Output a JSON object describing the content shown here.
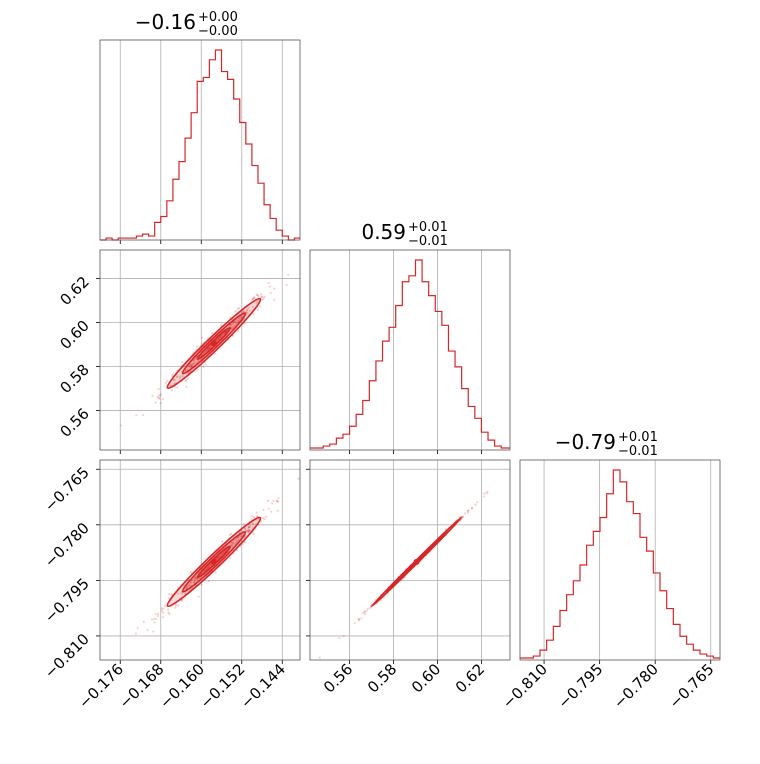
{
  "figure": {
    "type": "corner_plot",
    "accent_color": "#d62728",
    "grid": true
  },
  "chart_data": [
    {
      "type": "histogram",
      "panel": "hist-0",
      "title": {
        "main": "−0.16",
        "sup": "+0.00",
        "sub": "−0.00"
      },
      "xlim": [
        -0.18,
        -0.1405
      ],
      "bins": [
        -0.18,
        -0.1788,
        -0.1776,
        -0.1764,
        -0.1752,
        -0.174,
        -0.1728,
        -0.1716,
        -0.1704,
        -0.1692,
        -0.168,
        -0.1668,
        -0.1656,
        -0.1644,
        -0.1632,
        -0.162,
        -0.1608,
        -0.1596,
        -0.1584,
        -0.1572,
        -0.156,
        -0.1548,
        -0.1536,
        -0.1524,
        -0.1512,
        -0.15,
        -0.1488,
        -0.1476,
        -0.1464,
        -0.1452,
        -0.144,
        -0.1428,
        -0.1416,
        -0.1405
      ],
      "counts": [
        0.0,
        0.01,
        0.0,
        0.01,
        0.01,
        0.01,
        0.02,
        0.03,
        0.02,
        0.09,
        0.12,
        0.2,
        0.31,
        0.4,
        0.52,
        0.65,
        0.81,
        0.83,
        0.92,
        0.97,
        0.86,
        0.82,
        0.72,
        0.6,
        0.49,
        0.38,
        0.29,
        0.18,
        0.11,
        0.05,
        0.02,
        0.0,
        0.01
      ]
    },
    {
      "type": "histogram",
      "panel": "hist-1",
      "title": {
        "main": "0.59",
        "sup": "+0.01",
        "sub": "−0.01"
      },
      "xlim": [
        0.542,
        0.633
      ],
      "bins": [
        0.542,
        0.545,
        0.548,
        0.551,
        0.554,
        0.557,
        0.56,
        0.563,
        0.566,
        0.569,
        0.572,
        0.575,
        0.578,
        0.581,
        0.584,
        0.587,
        0.59,
        0.593,
        0.596,
        0.599,
        0.602,
        0.605,
        0.608,
        0.611,
        0.614,
        0.617,
        0.62,
        0.623,
        0.626,
        0.629,
        0.633
      ],
      "counts": [
        0.01,
        0.01,
        0.02,
        0.03,
        0.06,
        0.08,
        0.12,
        0.18,
        0.25,
        0.35,
        0.45,
        0.55,
        0.62,
        0.73,
        0.85,
        0.88,
        0.96,
        0.85,
        0.78,
        0.7,
        0.63,
        0.5,
        0.42,
        0.31,
        0.22,
        0.16,
        0.09,
        0.05,
        0.02,
        0.01
      ]
    },
    {
      "type": "histogram",
      "panel": "hist-2",
      "title": {
        "main": "−0.79",
        "sup": "+0.01",
        "sub": "−0.01"
      },
      "xlim": [
        -0.8165,
        -0.7625
      ],
      "bins": [
        -0.8165,
        -0.8147,
        -0.8129,
        -0.8111,
        -0.8093,
        -0.8075,
        -0.8057,
        -0.8039,
        -0.8021,
        -0.8003,
        -0.7985,
        -0.7967,
        -0.7949,
        -0.7931,
        -0.7913,
        -0.7895,
        -0.7877,
        -0.7859,
        -0.7841,
        -0.7823,
        -0.7805,
        -0.7787,
        -0.7769,
        -0.7751,
        -0.7733,
        -0.7715,
        -0.7697,
        -0.7679,
        -0.7661,
        -0.7643,
        -0.7625
      ],
      "counts": [
        0.01,
        0.01,
        0.02,
        0.05,
        0.1,
        0.17,
        0.25,
        0.33,
        0.4,
        0.48,
        0.58,
        0.65,
        0.72,
        0.84,
        0.96,
        0.9,
        0.8,
        0.74,
        0.62,
        0.55,
        0.44,
        0.35,
        0.26,
        0.18,
        0.12,
        0.08,
        0.05,
        0.03,
        0.02,
        0.01
      ]
    },
    {
      "type": "scatter",
      "panel": "joint-1-0",
      "x_param": 0,
      "y_param": 1,
      "xlim": [
        -0.18,
        -0.1405
      ],
      "ylim": [
        0.542,
        0.633
      ],
      "mean": [
        -0.1575,
        0.5905
      ],
      "sigma": [
        0.0046,
        0.0102
      ],
      "rho": 0.98
    },
    {
      "type": "scatter",
      "panel": "joint-2-0",
      "x_param": 0,
      "y_param": 2,
      "xlim": [
        -0.18,
        -0.1405
      ],
      "ylim": [
        -0.8165,
        -0.7625
      ],
      "mean": [
        -0.1575,
        -0.79
      ],
      "sigma": [
        0.0046,
        0.006
      ],
      "rho": 0.98
    },
    {
      "type": "scatter",
      "panel": "joint-2-1",
      "x_param": 1,
      "y_param": 2,
      "xlim": [
        0.542,
        0.633
      ],
      "ylim": [
        -0.8165,
        -0.7625
      ],
      "mean": [
        0.5905,
        -0.79
      ],
      "sigma": [
        0.0102,
        0.006
      ],
      "rho": 0.999
    }
  ],
  "ticks": {
    "p0": [
      -0.176,
      -0.168,
      -0.16,
      -0.152,
      -0.144
    ],
    "p1": [
      0.56,
      0.58,
      0.6,
      0.62
    ],
    "p2": [
      -0.81,
      -0.795,
      -0.78,
      -0.765
    ]
  },
  "tick_labels": {
    "p0": [
      "−0.176",
      "−0.168",
      "−0.160",
      "−0.152",
      "−0.144"
    ],
    "p1": [
      "0.56",
      "0.58",
      "0.60",
      "0.62"
    ],
    "p2": [
      "−0.810",
      "−0.795",
      "−0.780",
      "−0.765"
    ]
  }
}
